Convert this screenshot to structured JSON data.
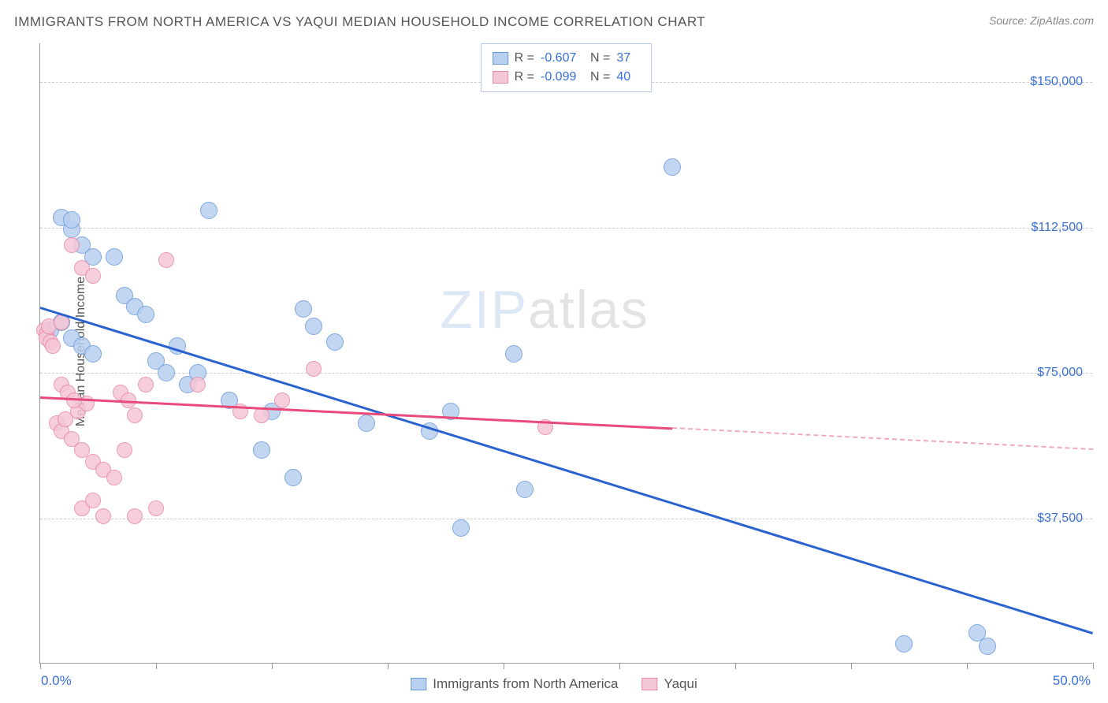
{
  "title": "IMMIGRANTS FROM NORTH AMERICA VS YAQUI MEDIAN HOUSEHOLD INCOME CORRELATION CHART",
  "source_label": "Source: ",
  "source_value": "ZipAtlas.com",
  "ylabel": "Median Household Income",
  "watermark": {
    "part1": "ZIP",
    "part2": "atlas"
  },
  "chart": {
    "type": "scatter",
    "background_color": "#ffffff",
    "grid_color": "#cccccc",
    "axis_color": "#999999",
    "xlim": [
      0,
      50
    ],
    "ylim": [
      0,
      160000
    ],
    "x_axis": {
      "min_label": "0.0%",
      "max_label": "50.0%",
      "tick_positions_pct": [
        0,
        11,
        22,
        33,
        44,
        55,
        66,
        77,
        88,
        100
      ]
    },
    "y_axis": {
      "ticks": [
        {
          "value": 37500,
          "label": "$37,500"
        },
        {
          "value": 75000,
          "label": "$75,000"
        },
        {
          "value": 112500,
          "label": "$112,500"
        },
        {
          "value": 150000,
          "label": "$150,000"
        }
      ],
      "label_color": "#3a6fd8",
      "label_fontsize": 16
    },
    "series": [
      {
        "name": "Immigrants from North America",
        "color_fill": "#b8d0f0",
        "color_stroke": "#6a9ad8",
        "marker_radius": 11,
        "r_value": "-0.607",
        "n_value": "37",
        "trend": {
          "x1": 0,
          "y1": 92000,
          "x2": 50,
          "y2": 8000,
          "color": "#2a62d0",
          "width": 3
        },
        "points": [
          [
            1.0,
            115000
          ],
          [
            1.5,
            112000
          ],
          [
            1.5,
            114500
          ],
          [
            2.0,
            108000
          ],
          [
            2.5,
            105000
          ],
          [
            0.5,
            86000
          ],
          [
            1.0,
            88000
          ],
          [
            1.5,
            84000
          ],
          [
            2.0,
            82000
          ],
          [
            2.5,
            80000
          ],
          [
            3.5,
            105000
          ],
          [
            4.0,
            95000
          ],
          [
            4.5,
            92000
          ],
          [
            5.0,
            90000
          ],
          [
            5.5,
            78000
          ],
          [
            6.0,
            75000
          ],
          [
            6.5,
            82000
          ],
          [
            7.0,
            72000
          ],
          [
            7.5,
            75000
          ],
          [
            8.0,
            117000
          ],
          [
            9.0,
            68000
          ],
          [
            10.5,
            55000
          ],
          [
            11.0,
            65000
          ],
          [
            12.0,
            48000
          ],
          [
            12.5,
            91500
          ],
          [
            13.0,
            87000
          ],
          [
            14.0,
            83000
          ],
          [
            15.5,
            62000
          ],
          [
            18.5,
            60000
          ],
          [
            19.5,
            65000
          ],
          [
            20.0,
            35000
          ],
          [
            22.5,
            80000
          ],
          [
            23.0,
            45000
          ],
          [
            30.0,
            128000
          ],
          [
            41.0,
            5000
          ],
          [
            44.5,
            8000
          ],
          [
            45.0,
            4500
          ]
        ]
      },
      {
        "name": "Yaqui",
        "color_fill": "#f5c6d6",
        "color_stroke": "#e88aaa",
        "marker_radius": 10,
        "r_value": "-0.099",
        "n_value": "40",
        "trend": {
          "x1": 0,
          "y1": 69000,
          "x2": 30,
          "y2": 61000,
          "color": "#e84a7a",
          "width": 2.5
        },
        "trend_dash": {
          "x1": 30,
          "y1": 61000,
          "x2": 50,
          "y2": 55500,
          "color": "#f0a8c0"
        },
        "points": [
          [
            0.2,
            86000
          ],
          [
            0.3,
            85000
          ],
          [
            0.3,
            84000
          ],
          [
            0.4,
            87000
          ],
          [
            0.5,
            83000
          ],
          [
            0.6,
            82000
          ],
          [
            1.0,
            88000
          ],
          [
            1.5,
            108000
          ],
          [
            2.0,
            102000
          ],
          [
            2.5,
            100000
          ],
          [
            0.8,
            62000
          ],
          [
            1.0,
            60000
          ],
          [
            1.2,
            63000
          ],
          [
            1.5,
            58000
          ],
          [
            1.8,
            65000
          ],
          [
            2.0,
            55000
          ],
          [
            2.2,
            67000
          ],
          [
            2.5,
            52000
          ],
          [
            3.0,
            50000
          ],
          [
            3.5,
            48000
          ],
          [
            4.0,
            55000
          ],
          [
            4.5,
            64000
          ],
          [
            5.0,
            72000
          ],
          [
            5.5,
            40000
          ],
          [
            6.0,
            104000
          ],
          [
            2.0,
            40000
          ],
          [
            2.5,
            42000
          ],
          [
            3.0,
            38000
          ],
          [
            1.0,
            72000
          ],
          [
            1.3,
            70000
          ],
          [
            1.6,
            68000
          ],
          [
            3.8,
            70000
          ],
          [
            4.2,
            68000
          ],
          [
            7.5,
            72000
          ],
          [
            9.5,
            65000
          ],
          [
            10.5,
            64000
          ],
          [
            13.0,
            76000
          ],
          [
            11.5,
            68000
          ],
          [
            24.0,
            61000
          ],
          [
            4.5,
            38000
          ]
        ]
      }
    ],
    "legend_top": {
      "border_color": "#b8c8e8",
      "r_label": "R =",
      "n_label": "N ="
    },
    "legend_bottom": {
      "items": [
        "Immigrants from North America",
        "Yaqui"
      ]
    }
  }
}
